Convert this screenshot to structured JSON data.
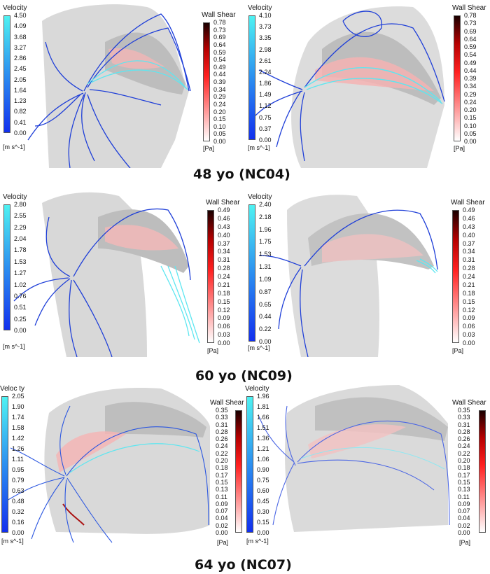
{
  "rows": [
    {
      "label": "48 yo (NC04)",
      "panels": [
        {
          "velocity_title": "Velocity",
          "velocity_ticks": [
            "4.50",
            "4.09",
            "3.68",
            "3.27",
            "2.86",
            "2.45",
            "2.05",
            "1.64",
            "1.23",
            "0.82",
            "0.41",
            "0.00"
          ],
          "velocity_unit": "[m s^-1]",
          "shear_title": "Wall Shear",
          "shear_ticks": [
            "0.78",
            "0.73",
            "0.69",
            "0.64",
            "0.59",
            "0.54",
            "0.49",
            "0.44",
            "0.39",
            "0.34",
            "0.29",
            "0.24",
            "0.20",
            "0.15",
            "0.10",
            "0.05",
            "0.00"
          ],
          "shear_unit": "[Pa]"
        },
        {
          "velocity_title": "Velocity",
          "velocity_ticks": [
            "4.10",
            "3.73",
            "3.35",
            "2.98",
            "2.61",
            "2.24",
            "1.86",
            "1.49",
            "1.12",
            "0.75",
            "0.37",
            "0.00"
          ],
          "velocity_unit": "[m s^-1]",
          "shear_title": "Wall Shear",
          "shear_ticks": [
            "0.78",
            "0.73",
            "0.69",
            "0.64",
            "0.59",
            "0.54",
            "0.49",
            "0.44",
            "0.39",
            "0.34",
            "0.29",
            "0.24",
            "0.20",
            "0.15",
            "0.10",
            "0.05",
            "0.00"
          ],
          "shear_unit": "[Pa]"
        }
      ]
    },
    {
      "label": "60 yo (NC09)",
      "panels": [
        {
          "velocity_title": "Velocity",
          "velocity_ticks": [
            "2.80",
            "2.55",
            "2.29",
            "2.04",
            "1.78",
            "1.53",
            "1.27",
            "1.02",
            "0.76",
            "0.51",
            "0.25",
            "0.00"
          ],
          "velocity_unit": "[m s^-1]",
          "shear_title": "Wall Shear",
          "shear_ticks": [
            "0.49",
            "0.46",
            "0.43",
            "0.40",
            "0.37",
            "0.34",
            "0.31",
            "0.28",
            "0.24",
            "0.21",
            "0.18",
            "0.15",
            "0.12",
            "0.09",
            "0.06",
            "0.03",
            "0.00"
          ],
          "shear_unit": "[Pa]"
        },
        {
          "velocity_title": "Velocity",
          "velocity_ticks": [
            "2.40",
            "2.18",
            "1.96",
            "1.75",
            "1.53",
            "1.31",
            "1.09",
            "0.87",
            "0.65",
            "0.44",
            "0.22",
            "0.00"
          ],
          "velocity_unit": "[m s^-1]",
          "shear_title": "Wall Shear",
          "shear_ticks": [
            "0.49",
            "0.46",
            "0.43",
            "0.40",
            "0.37",
            "0.34",
            "0.31",
            "0.28",
            "0.24",
            "0.21",
            "0.18",
            "0.15",
            "0.12",
            "0.09",
            "0.06",
            "0.03",
            "0.00"
          ],
          "shear_unit": "[Pa]"
        }
      ]
    },
    {
      "label": "64 yo (NC07)",
      "panels": [
        {
          "velocity_title": "Veloc ty",
          "velocity_ticks": [
            "2.05",
            "1.90",
            "1.74",
            "1.58",
            "1.42",
            "1.26",
            "1.11",
            "0.95",
            "0.79",
            "0.63",
            "0.48",
            "0.32",
            "0.16",
            "0.00"
          ],
          "velocity_unit": "[m s^-1]",
          "shear_title": "Wall Shear",
          "shear_ticks": [
            "0.35",
            "0.33",
            "0.31",
            "0.28",
            "0.26",
            "0.24",
            "0.22",
            "0.20",
            "0.18",
            "0.17",
            "0.15",
            "0.13",
            "0.11",
            "0.09",
            "0.07",
            "0.04",
            "0.02",
            "0.00"
          ],
          "shear_unit": "[Pa]"
        },
        {
          "velocity_title": "Velocity",
          "velocity_ticks": [
            "1.96",
            "1.81",
            "1.66",
            "1.51",
            "1.36",
            "1.21",
            "1.06",
            "0.90",
            "0.75",
            "0.60",
            "0.45",
            "0.30",
            "0.15",
            "0.00"
          ],
          "velocity_unit": "[m s^-1]",
          "shear_title": "Wall Shear",
          "shear_ticks": [
            "0.35",
            "0.33",
            "0.31",
            "0.28",
            "0.26",
            "0.24",
            "0.22",
            "0.20",
            "0.18",
            "0.17",
            "0.15",
            "0.13",
            "0.11",
            "0.09",
            "0.07",
            "0.04",
            "0.02",
            "0.00"
          ],
          "shear_unit": "[Pa]"
        }
      ]
    }
  ],
  "colors": {
    "streamline_blue": "#1f3fd8",
    "streamline_cyan": "#5ee6f0",
    "surface_gray": "#d6d6d6",
    "shear_red": "#e0202a"
  }
}
